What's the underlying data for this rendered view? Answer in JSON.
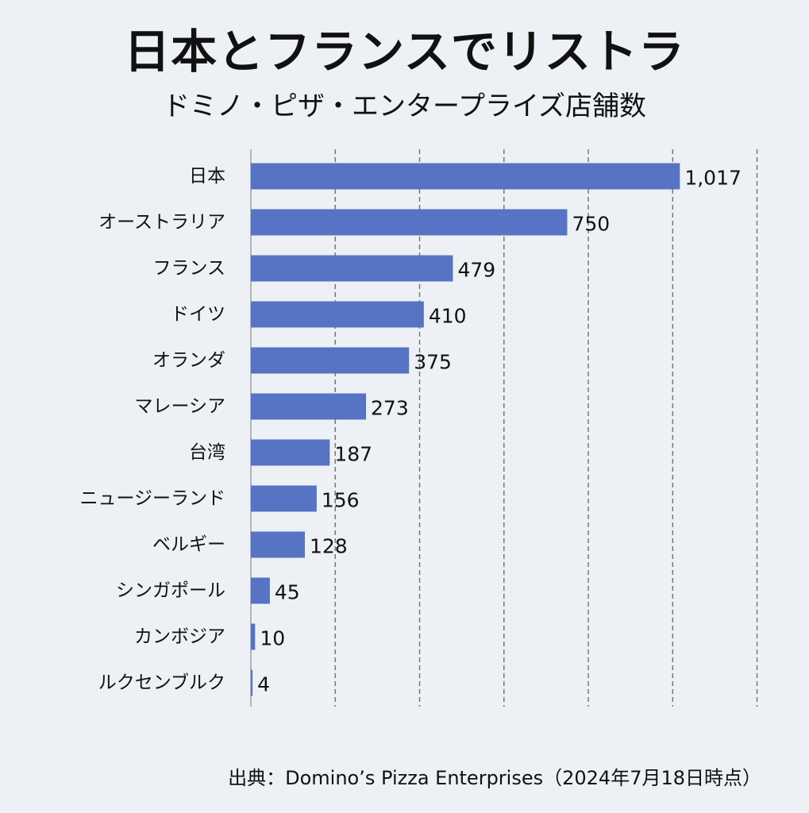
{
  "header": {
    "title": "日本とフランスでリストラ",
    "subtitle": "ドミノ・ピザ・エンタープライズ店舗数"
  },
  "source": "出典：Domino’s Pizza Enterprises（2024年7月18日時点）",
  "colors": {
    "bar": "#5673c4",
    "grid": "#777777",
    "background": "#edf1f5"
  },
  "chart_data": {
    "type": "bar",
    "orientation": "horizontal",
    "title": "日本とフランスでリストラ",
    "subtitle": "ドミノ・ピザ・エンタープライズ店舗数",
    "categories": [
      "日本",
      "オーストラリア",
      "フランス",
      "ドイツ",
      "オランダ",
      "マレーシア",
      "台湾",
      "ニュージーランド",
      "ベルギー",
      "シンガポール",
      "カンボジア",
      "ルクセンブルク"
    ],
    "values": [
      1017,
      750,
      479,
      410,
      375,
      273,
      187,
      156,
      128,
      45,
      10,
      4
    ],
    "value_labels": [
      "1,017",
      "750",
      "479",
      "410",
      "375",
      "273",
      "187",
      "156",
      "128",
      "45",
      "10",
      "4"
    ],
    "xlim": [
      0,
      1200
    ],
    "grid": true,
    "grid_step": 200,
    "legend": "none"
  }
}
